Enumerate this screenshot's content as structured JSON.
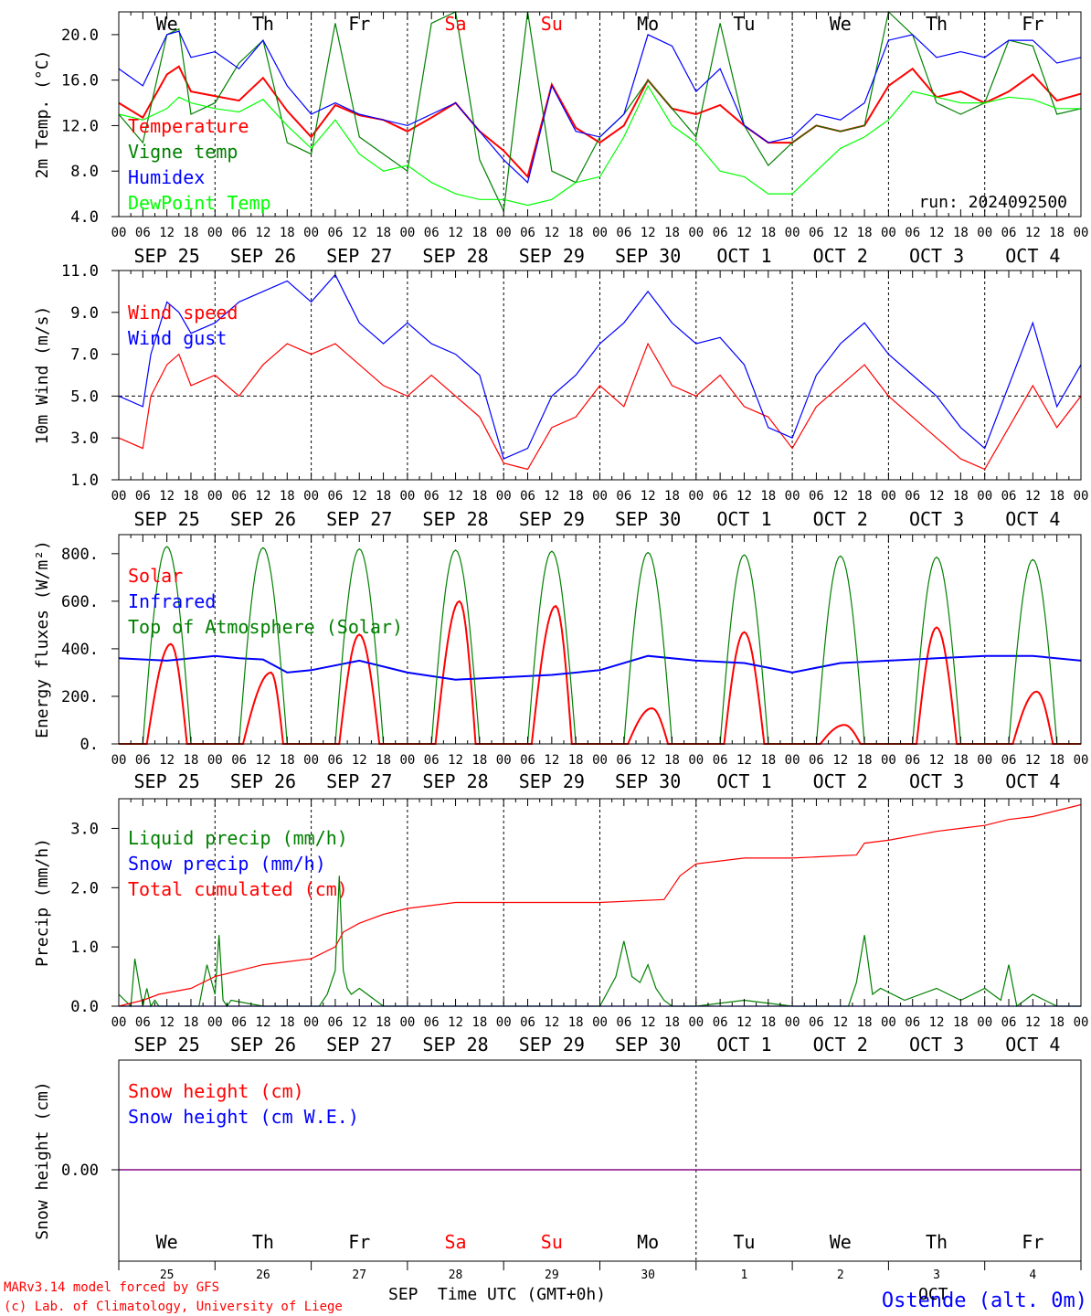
{
  "meta": {
    "run": "run: 2024092500",
    "model": "MARv3.14 model forced by GFS",
    "credit": "(c) Lab. of Climatology, University of Liege",
    "station": "Ostende (alt. 0m)",
    "xlabel": "Time UTC (GMT+0h)",
    "month_left": "SEP",
    "month_right": "OCT"
  },
  "days": [
    {
      "date": "SEP 25",
      "short": "We",
      "num": "25",
      "weekend": false
    },
    {
      "date": "SEP 26",
      "short": "Th",
      "num": "26",
      "weekend": false
    },
    {
      "date": "SEP 27",
      "short": "Fr",
      "num": "27",
      "weekend": false
    },
    {
      "date": "SEP 28",
      "short": "Sa",
      "num": "28",
      "weekend": true
    },
    {
      "date": "SEP 29",
      "short": "Su",
      "num": "29",
      "weekend": true
    },
    {
      "date": "SEP 30",
      "short": "Mo",
      "num": "30",
      "weekend": false
    },
    {
      "date": "OCT  1",
      "short": "Tu",
      "num": "1",
      "weekend": false
    },
    {
      "date": "OCT  2",
      "short": "We",
      "num": "2",
      "weekend": false
    },
    {
      "date": "OCT  3",
      "short": "Th",
      "num": "3",
      "weekend": false
    },
    {
      "date": "OCT  4",
      "short": "Fr",
      "num": "4",
      "weekend": false
    }
  ],
  "hour_ticks": [
    "00",
    "06",
    "12",
    "18"
  ],
  "colors": {
    "red": "#ff0000",
    "green": "#008000",
    "blue": "#0000ff",
    "light_green": "#00ff00",
    "purple": "#800080",
    "weekend": "#ff0000",
    "text": "#000000"
  },
  "chart_data": [
    {
      "type": "line",
      "x_unit": "hours since SEP 25 00 UTC",
      "ylabel": "2m Temp. (°C)",
      "ylim": [
        4,
        22
      ],
      "yticks": [
        "4.0",
        "8.0",
        "12.0",
        "16.0",
        "20.0"
      ],
      "series": [
        {
          "name": "Temperature",
          "color": "#ff0000",
          "x": [
            0,
            6,
            12,
            15,
            18,
            24,
            30,
            36,
            42,
            48,
            54,
            60,
            66,
            72,
            78,
            84,
            90,
            96,
            102,
            108,
            114,
            120,
            126,
            132,
            138,
            144,
            150,
            156,
            162,
            168,
            174,
            180,
            186,
            192,
            198,
            204,
            210,
            216,
            222,
            228,
            234,
            240
          ],
          "y": [
            14.0,
            12.7,
            16.5,
            17.2,
            15.0,
            14.6,
            14.2,
            16.2,
            13.3,
            11.0,
            13.8,
            12.9,
            12.5,
            11.5,
            12.7,
            14.0,
            11.5,
            9.8,
            7.5,
            15.6,
            11.8,
            10.5,
            12.0,
            16.0,
            13.5,
            13.0,
            13.8,
            12.0,
            10.5,
            10.5,
            12.0,
            11.5,
            12.0,
            15.5,
            17.0,
            14.5,
            15.0,
            14.0,
            15.0,
            16.5,
            14.2,
            14.8
          ]
        },
        {
          "name": "Vigne temp",
          "color": "#008000",
          "x": [
            0,
            6,
            12,
            15,
            18,
            24,
            30,
            36,
            42,
            48,
            54,
            60,
            66,
            72,
            78,
            84,
            90,
            96,
            102,
            108,
            114,
            120,
            126,
            132,
            138,
            144,
            150,
            156,
            162,
            168,
            174,
            180,
            186,
            192,
            198,
            204,
            210,
            216,
            222,
            228,
            234,
            240
          ],
          "y": [
            13.0,
            10.5,
            20.0,
            20.5,
            13.0,
            14.0,
            17.5,
            19.5,
            10.5,
            9.5,
            21.0,
            11.0,
            9.5,
            8.0,
            21.0,
            22.0,
            9.0,
            4.5,
            22.0,
            8.0,
            7.0,
            11.0,
            13.0,
            16.0,
            13.5,
            11.0,
            21.0,
            12.0,
            8.5,
            10.5,
            12.0,
            11.5,
            12.0,
            22.0,
            20.0,
            14.0,
            13.0,
            14.0,
            19.5,
            19.0,
            13.0,
            13.5
          ]
        },
        {
          "name": "Humidex",
          "color": "#0000ff",
          "x": [
            0,
            6,
            12,
            15,
            18,
            24,
            30,
            36,
            42,
            48,
            54,
            60,
            66,
            72,
            78,
            84,
            90,
            96,
            102,
            108,
            114,
            120,
            126,
            132,
            138,
            144,
            150,
            156,
            162,
            168,
            174,
            180,
            186,
            192,
            198,
            204,
            210,
            216,
            222,
            228,
            234,
            240
          ],
          "y": [
            17.0,
            15.5,
            20.0,
            20.3,
            18.0,
            18.5,
            17.0,
            19.5,
            15.5,
            13.0,
            14.0,
            13.0,
            12.5,
            12.0,
            13.0,
            14.0,
            11.5,
            9.0,
            7.0,
            15.5,
            11.5,
            11.0,
            13.0,
            20.0,
            19.0,
            15.0,
            17.0,
            12.0,
            10.5,
            11.0,
            13.0,
            12.5,
            14.0,
            19.5,
            20.0,
            18.0,
            18.5,
            18.0,
            19.5,
            19.5,
            17.5,
            18.0
          ]
        },
        {
          "name": "DewPoint Temp",
          "color": "#00ff00",
          "x": [
            0,
            6,
            12,
            15,
            18,
            24,
            30,
            36,
            42,
            48,
            54,
            60,
            66,
            72,
            78,
            84,
            90,
            96,
            102,
            108,
            114,
            120,
            126,
            132,
            138,
            144,
            150,
            156,
            162,
            168,
            174,
            180,
            186,
            192,
            198,
            204,
            210,
            216,
            222,
            228,
            234,
            240
          ],
          "y": [
            13.0,
            12.5,
            13.5,
            14.5,
            14.0,
            13.5,
            13.2,
            14.3,
            12.0,
            10.0,
            12.5,
            9.5,
            8.0,
            8.5,
            7.0,
            6.0,
            5.5,
            5.5,
            5.0,
            5.5,
            7.0,
            7.5,
            11.0,
            15.5,
            12.0,
            10.5,
            8.0,
            7.5,
            6.0,
            6.0,
            8.0,
            10.0,
            11.0,
            12.5,
            15.0,
            14.5,
            14.0,
            14.0,
            14.5,
            14.3,
            13.5,
            13.5
          ]
        }
      ]
    },
    {
      "type": "line",
      "x_unit": "hours since SEP 25 00 UTC",
      "ylabel": "10m Wind (m/s)",
      "ylim": [
        1,
        11
      ],
      "yticks": [
        "1.0",
        "3.0",
        "5.0",
        "7.0",
        "9.0",
        "11.0"
      ],
      "reference_line": 5,
      "series": [
        {
          "name": "Wind speed",
          "color": "#ff0000",
          "x": [
            0,
            6,
            8,
            12,
            15,
            18,
            24,
            30,
            36,
            42,
            48,
            54,
            60,
            66,
            72,
            78,
            84,
            90,
            96,
            102,
            108,
            114,
            120,
            126,
            132,
            138,
            144,
            150,
            156,
            162,
            168,
            174,
            180,
            186,
            192,
            198,
            204,
            210,
            216,
            222,
            228,
            234,
            240
          ],
          "y": [
            3.0,
            2.5,
            5.0,
            6.5,
            7.0,
            5.5,
            6.0,
            5.0,
            6.5,
            7.5,
            7.0,
            7.5,
            6.5,
            5.5,
            5.0,
            6.0,
            5.0,
            4.0,
            1.8,
            1.5,
            3.5,
            4.0,
            5.5,
            4.5,
            7.5,
            5.5,
            5.0,
            6.0,
            4.5,
            4.0,
            2.5,
            4.5,
            5.5,
            6.5,
            5.0,
            4.0,
            3.0,
            2.0,
            1.5,
            3.5,
            5.5,
            3.5,
            5.0
          ]
        },
        {
          "name": "Wind gust",
          "color": "#0000ff",
          "x": [
            0,
            6,
            8,
            12,
            15,
            18,
            24,
            30,
            36,
            42,
            48,
            54,
            60,
            66,
            72,
            78,
            84,
            90,
            96,
            102,
            108,
            114,
            120,
            126,
            132,
            138,
            144,
            150,
            156,
            162,
            168,
            174,
            180,
            186,
            192,
            198,
            204,
            210,
            216,
            222,
            228,
            234,
            240
          ],
          "y": [
            5.0,
            4.5,
            7.0,
            9.5,
            9.0,
            8.0,
            8.5,
            9.5,
            10.0,
            10.5,
            9.5,
            10.8,
            8.5,
            7.5,
            8.5,
            7.5,
            7.0,
            6.0,
            2.0,
            2.5,
            5.0,
            6.0,
            7.5,
            8.5,
            10.0,
            8.5,
            7.5,
            7.8,
            6.5,
            3.5,
            3.0,
            6.0,
            7.5,
            8.5,
            7.0,
            6.0,
            5.0,
            3.5,
            2.5,
            5.5,
            8.5,
            4.5,
            6.5
          ]
        }
      ]
    },
    {
      "type": "line",
      "x_unit": "hours since SEP 25 00 UTC",
      "ylabel": "Energy fluxes (W/m²)",
      "ylim": [
        0,
        880
      ],
      "yticks": [
        "0.",
        "200.",
        "400.",
        "600.",
        "800."
      ],
      "series": [
        {
          "name": "Solar",
          "color": "#ff0000",
          "day_peaks": [
            420,
            300,
            460,
            600,
            580,
            150,
            470,
            80,
            490,
            220
          ],
          "peak_hour_offsets": [
            13,
            14,
            12,
            13,
            13,
            13,
            12,
            13,
            12,
            13
          ]
        },
        {
          "name": "Infrared",
          "color": "#0000ff",
          "x": [
            0,
            12,
            24,
            30,
            36,
            42,
            48,
            60,
            72,
            84,
            96,
            108,
            120,
            132,
            144,
            156,
            168,
            180,
            192,
            204,
            216,
            228,
            240
          ],
          "y": [
            360,
            350,
            370,
            360,
            355,
            300,
            310,
            350,
            300,
            270,
            280,
            290,
            310,
            370,
            350,
            340,
            300,
            340,
            350,
            360,
            370,
            370,
            350
          ]
        },
        {
          "name": "Top of Atmosphere (Solar)",
          "color": "#008000",
          "day_peaks": [
            830,
            825,
            820,
            815,
            810,
            805,
            795,
            790,
            785,
            775
          ],
          "sunrise_hour": 6,
          "sunset_hour": 18
        }
      ]
    },
    {
      "type": "line",
      "x_unit": "hours since SEP 25 00 UTC",
      "ylabel": "Precip (mm/h)",
      "ylim": [
        0,
        3.5
      ],
      "yticks": [
        "0.0",
        "1.0",
        "2.0",
        "3.0"
      ],
      "series": [
        {
          "name": "Liquid precip (mm/h)",
          "color": "#008000",
          "x": [
            0,
            3,
            4,
            6,
            7,
            8,
            9,
            10,
            20,
            22,
            24,
            25,
            26,
            27,
            28,
            36,
            48,
            50,
            52,
            54,
            55,
            56,
            57,
            58,
            60,
            64,
            66,
            72,
            84,
            96,
            108,
            120,
            124,
            126,
            128,
            130,
            132,
            134,
            136,
            138,
            140,
            144,
            156,
            168,
            182,
            184,
            186,
            188,
            190,
            196,
            204,
            210,
            216,
            220,
            222,
            224,
            228,
            234,
            240
          ],
          "y": [
            0.2,
            0.0,
            0.8,
            0.0,
            0.3,
            0.0,
            0.1,
            0.0,
            0.0,
            0.7,
            0.2,
            1.2,
            0.1,
            0.0,
            0.1,
            0.0,
            0.0,
            0.0,
            0.2,
            0.6,
            2.2,
            0.6,
            0.3,
            0.2,
            0.3,
            0.1,
            0.0,
            0.0,
            0.0,
            0.0,
            0.0,
            0.0,
            0.5,
            1.1,
            0.5,
            0.4,
            0.7,
            0.3,
            0.1,
            0.0,
            0.0,
            0.0,
            0.1,
            0.0,
            0.0,
            0.4,
            1.2,
            0.2,
            0.3,
            0.1,
            0.3,
            0.1,
            0.3,
            0.1,
            0.7,
            0.0,
            0.2,
            0.0,
            0.0
          ]
        },
        {
          "name": "Snow precip (mm/h)",
          "color": "#0000ff",
          "x": [
            0,
            240
          ],
          "y": [
            0,
            0
          ]
        },
        {
          "name": "Total cumulated (cm)",
          "color": "#ff0000",
          "x": [
            0,
            6,
            10,
            18,
            24,
            30,
            36,
            48,
            54,
            56,
            60,
            66,
            72,
            84,
            96,
            120,
            136,
            138,
            140,
            144,
            156,
            168,
            184,
            186,
            192,
            204,
            210,
            216,
            222,
            228,
            234,
            240
          ],
          "y": [
            0.0,
            0.1,
            0.2,
            0.3,
            0.5,
            0.6,
            0.7,
            0.8,
            1.0,
            1.25,
            1.4,
            1.55,
            1.65,
            1.75,
            1.75,
            1.75,
            1.8,
            2.0,
            2.2,
            2.4,
            2.5,
            2.5,
            2.55,
            2.75,
            2.8,
            2.95,
            3.0,
            3.05,
            3.15,
            3.2,
            3.3,
            3.4
          ]
        }
      ]
    },
    {
      "type": "line",
      "x_unit": "hours since SEP 25 00 UTC",
      "ylabel": "Snow height (cm)",
      "yticks": [
        "0.00"
      ],
      "series": [
        {
          "name": "Snow height (cm)",
          "color": "#ff0000",
          "x": [
            0,
            240
          ],
          "y": [
            0,
            0
          ]
        },
        {
          "name": "Snow height (cm W.E.)",
          "color": "#0000ff",
          "x": [
            0,
            240
          ],
          "y": [
            0,
            0
          ]
        }
      ]
    }
  ]
}
